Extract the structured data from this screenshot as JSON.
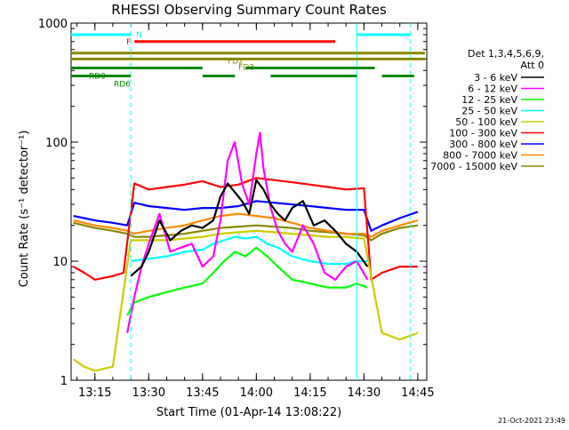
{
  "chart_data": {
    "type": "line",
    "title": "RHESSI Observing Summary Count Rates",
    "xlabel": "Start Time (01-Apr-14 13:08:22)",
    "ylabel": "Count Rate (s⁻¹ detector⁻¹)",
    "y_scale": "log",
    "ylim": [
      1,
      1000
    ],
    "xlim": [
      "13:08:22",
      "14:47:30"
    ],
    "grid": false,
    "x_ticks": [
      "13:15",
      "13:30",
      "13:45",
      "14:00",
      "14:15",
      "14:30",
      "14:45"
    ],
    "y_ticks": [
      {
        "value": 1,
        "label": "1"
      },
      {
        "value": 10,
        "label": "10"
      },
      {
        "value": 100,
        "label": "100"
      },
      {
        "value": 1000,
        "label": "1000"
      }
    ],
    "legend": {
      "position": "right",
      "header": [
        "Det 1,3,4,5,6,9,",
        "Att 0"
      ],
      "entries": [
        {
          "label": "3 - 6 keV",
          "color": "#000000"
        },
        {
          "label": "6 - 12 keV",
          "color": "#ff00ff"
        },
        {
          "label": "12 - 25 keV",
          "color": "#00ff00"
        },
        {
          "label": "25 - 50 keV",
          "color": "#00ffff"
        },
        {
          "label": "50 - 100 keV",
          "color": "#cccc00"
        },
        {
          "label": "100 - 300 keV",
          "color": "#ff0000"
        },
        {
          "label": "300 - 800 keV",
          "color": "#0000ff"
        },
        {
          "label": "800 - 7000 keV",
          "color": "#ff8800"
        },
        {
          "label": "7000 - 15000 keV",
          "color": "#888800"
        }
      ]
    },
    "series": [
      {
        "name": "3 - 6 keV",
        "color": "#000000",
        "x": [
          "13:25",
          "13:28",
          "13:30",
          "13:33",
          "13:36",
          "13:39",
          "13:42",
          "13:45",
          "13:48",
          "13:50",
          "13:52",
          "13:54",
          "13:56",
          "13:58",
          "14:00",
          "14:02",
          "14:04",
          "14:06",
          "14:08",
          "14:10",
          "14:13",
          "14:16",
          "14:19",
          "14:22",
          "14:25",
          "14:28",
          "14:31"
        ],
        "y": [
          7.5,
          9,
          12,
          22,
          15,
          18,
          20,
          19,
          22,
          35,
          45,
          38,
          32,
          25,
          48,
          40,
          30,
          25,
          22,
          28,
          32,
          20,
          22,
          18,
          14,
          12,
          9
        ]
      },
      {
        "name": "6 - 12 keV",
        "color": "#ff00ff",
        "x": [
          "13:24",
          "13:26",
          "13:28",
          "13:30",
          "13:33",
          "13:36",
          "13:39",
          "13:42",
          "13:45",
          "13:48",
          "13:50",
          "13:52",
          "13:54",
          "13:56",
          "13:58",
          "14:00",
          "14:01",
          "14:02",
          "14:04",
          "14:06",
          "14:08",
          "14:10",
          "14:13",
          "14:16",
          "14:19",
          "14:22",
          "14:25",
          "14:28",
          "14:31"
        ],
        "y": [
          2.5,
          5,
          9,
          14,
          25,
          12,
          13,
          14,
          9,
          11,
          22,
          70,
          100,
          45,
          30,
          80,
          120,
          60,
          28,
          18,
          14,
          12,
          20,
          14,
          8,
          7,
          9,
          10,
          7
        ]
      },
      {
        "name": "12 - 25 keV",
        "color": "#00ff00",
        "x": [
          "13:24",
          "13:26",
          "13:30",
          "13:35",
          "13:40",
          "13:45",
          "13:48",
          "13:51",
          "13:54",
          "13:57",
          "14:00",
          "14:03",
          "14:06",
          "14:10",
          "14:15",
          "14:20",
          "14:25",
          "14:28",
          "14:31"
        ],
        "y": [
          3.5,
          4.5,
          5,
          5.5,
          6,
          6.5,
          8,
          10,
          12,
          11,
          13,
          11,
          9,
          7,
          6.5,
          6,
          6,
          6.5,
          6
        ]
      },
      {
        "name": "25 - 50 keV",
        "color": "#00ffff",
        "x": [
          "13:25",
          "13:30",
          "13:35",
          "13:40",
          "13:45",
          "13:48",
          "13:51",
          "13:54",
          "13:57",
          "14:00",
          "14:03",
          "14:06",
          "14:10",
          "14:15",
          "14:20",
          "14:25",
          "14:28",
          "14:31"
        ],
        "y": [
          10,
          10.5,
          11,
          12,
          12.5,
          14,
          15,
          16,
          15.5,
          16,
          14,
          13,
          11,
          10,
          9.5,
          9.5,
          10,
          10
        ]
      },
      {
        "name": "50 - 100 keV",
        "color": "#cccc00",
        "x": [
          "13:09",
          "13:12",
          "13:15",
          "13:20",
          "13:25",
          "13:30",
          "13:35",
          "13:40",
          "13:45",
          "13:50",
          "13:55",
          "14:00",
          "14:05",
          "14:10",
          "14:15",
          "14:20",
          "14:25",
          "14:30",
          "14:35",
          "14:40",
          "14:45"
        ],
        "y": [
          1.5,
          1.3,
          1.2,
          1.3,
          15,
          15,
          15,
          15.5,
          16,
          17,
          17.5,
          18,
          17.5,
          17,
          16.5,
          16,
          16,
          15.5,
          2.5,
          2.2,
          2.5
        ]
      },
      {
        "name": "100 - 300 keV",
        "color": "#ff0000",
        "x": [
          "13:09",
          "13:12",
          "13:15",
          "13:20",
          "13:23",
          "13:26",
          "13:30",
          "13:35",
          "13:40",
          "13:45",
          "13:50",
          "13:55",
          "14:00",
          "14:05",
          "14:10",
          "14:15",
          "14:20",
          "14:25",
          "14:30",
          "14:32",
          "14:35",
          "14:40",
          "14:45"
        ],
        "y": [
          9,
          8,
          7,
          7.5,
          8,
          45,
          40,
          42,
          44,
          47,
          42,
          44,
          50,
          48,
          46,
          44,
          42,
          40,
          41,
          7,
          8,
          9,
          9
        ]
      },
      {
        "name": "300 - 800 keV",
        "color": "#0000ff",
        "x": [
          "13:09",
          "13:12",
          "13:15",
          "13:20",
          "13:24",
          "13:26",
          "13:30",
          "13:35",
          "13:40",
          "13:45",
          "13:50",
          "13:55",
          "14:00",
          "14:05",
          "14:10",
          "14:15",
          "14:20",
          "14:25",
          "14:30",
          "14:32",
          "14:35",
          "14:40",
          "14:45"
        ],
        "y": [
          24,
          23,
          22,
          21,
          20,
          31,
          29,
          28,
          27,
          28,
          28,
          29,
          32,
          31,
          30,
          29,
          28,
          27,
          27,
          18,
          20,
          23,
          26
        ]
      },
      {
        "name": "800 - 7000 keV",
        "color": "#ff8800",
        "x": [
          "13:09",
          "13:12",
          "13:15",
          "13:20",
          "13:24",
          "13:26",
          "13:30",
          "13:35",
          "13:40",
          "13:45",
          "13:50",
          "13:55",
          "14:00",
          "14:05",
          "14:10",
          "14:15",
          "14:20",
          "14:25",
          "14:30",
          "14:32",
          "14:35",
          "14:40",
          "14:45"
        ],
        "y": [
          22,
          21,
          20,
          19,
          18,
          17,
          18,
          19,
          20,
          22,
          24,
          25,
          24,
          23,
          21,
          19,
          18,
          17,
          17,
          16,
          18,
          20,
          22
        ]
      },
      {
        "name": "7000 - 15000 keV",
        "color": "#888800",
        "x": [
          "13:09",
          "13:12",
          "13:15",
          "13:20",
          "13:24",
          "13:26",
          "13:30",
          "13:35",
          "13:40",
          "13:45",
          "13:50",
          "13:55",
          "14:00",
          "14:05",
          "14:10",
          "14:15",
          "14:20",
          "14:25",
          "14:30",
          "14:32",
          "14:35",
          "14:40",
          "14:45"
        ],
        "y": [
          21,
          20,
          19,
          18,
          17,
          16,
          16,
          16.5,
          17,
          18,
          19,
          19.5,
          20,
          19.5,
          19,
          18,
          17.5,
          17,
          16.5,
          15,
          17,
          19,
          20
        ]
      }
    ],
    "annotation_bars": [
      {
        "label": "N",
        "color": "#00ffff",
        "y_level": 800,
        "segments": [
          [
            "13:08:22",
            "13:25"
          ],
          [
            "14:28",
            "14:43"
          ]
        ]
      },
      {
        "label": "F",
        "color": "#ff0000",
        "y_level": 700,
        "segments": [
          [
            "13:26",
            "14:22"
          ]
        ]
      },
      {
        "label": "FD2",
        "color": "#888800",
        "y_level": 560,
        "segments": [
          [
            "13:08:22",
            "14:47"
          ]
        ]
      },
      {
        "label": "FD3",
        "color": "#888800",
        "y_level": 500,
        "segments": [
          [
            "13:08:22",
            "14:47"
          ]
        ]
      },
      {
        "label": "RD0",
        "color": "#008800",
        "y_level": 420,
        "segments": [
          [
            "13:08:22",
            "13:45"
          ],
          [
            "13:57",
            "14:33"
          ]
        ]
      },
      {
        "label": "RD6",
        "color": "#008800",
        "y_level": 360,
        "segments": [
          [
            "13:08:22",
            "13:25"
          ],
          [
            "13:45",
            "13:54"
          ],
          [
            "14:04",
            "14:28"
          ],
          [
            "14:35",
            "14:44"
          ]
        ]
      }
    ],
    "vertical_markers": [
      {
        "time": "13:25",
        "color": "#00ffff",
        "style": "dashed"
      },
      {
        "time": "14:28",
        "color": "#00ffff",
        "style": "solid"
      },
      {
        "time": "14:43",
        "color": "#00ffff",
        "style": "dashed"
      }
    ]
  },
  "footer": {
    "timestamp": "21-Oct-2021 23:49"
  }
}
